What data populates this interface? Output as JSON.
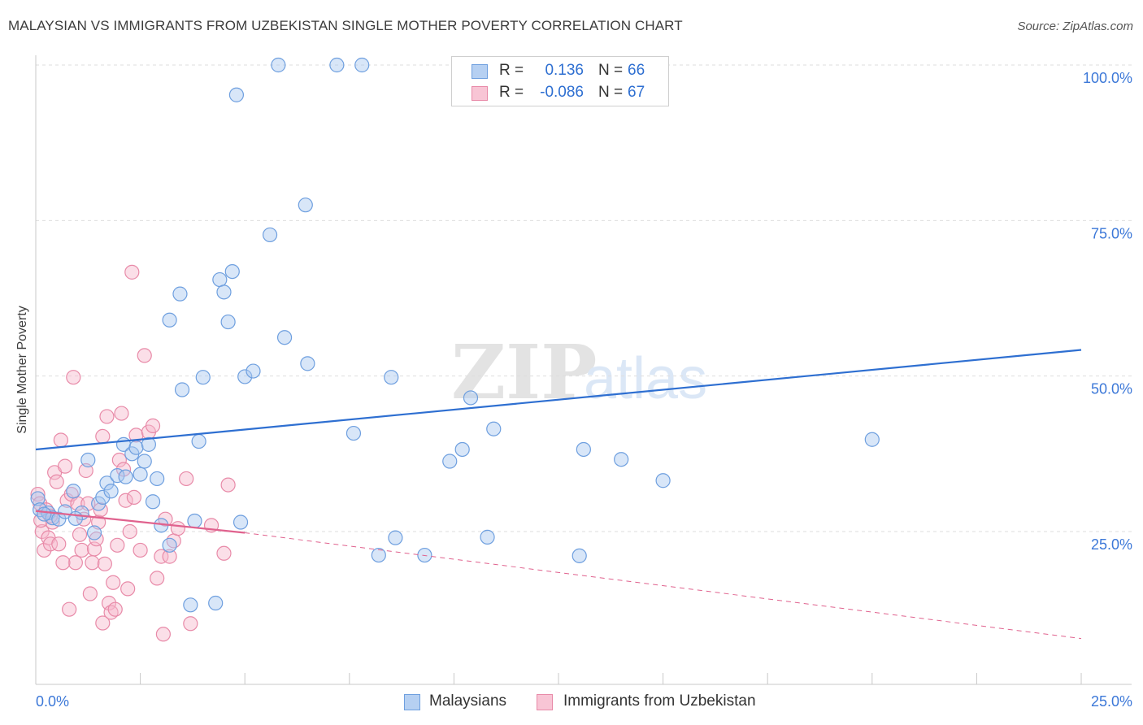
{
  "title": "MALAYSIAN VS IMMIGRANTS FROM UZBEKISTAN SINGLE MOTHER POVERTY CORRELATION CHART",
  "source": "Source: ZipAtlas.com",
  "watermark": {
    "bold": "ZIP",
    "light": "atlas"
  },
  "legend_top": {
    "rows": [
      {
        "r_label": "R =",
        "r_value": "0.136",
        "n_label": "N =",
        "n_value": "66"
      },
      {
        "r_label": "R =",
        "r_value": "-0.086",
        "n_label": "N =",
        "n_value": "67"
      }
    ]
  },
  "legend_bottom": {
    "series1": "Malaysians",
    "series2": "Immigrants from Uzbekistan"
  },
  "colors": {
    "malaysian_fill": "#a9c8f0",
    "malaysian_stroke": "#6e9fdf",
    "malaysian_line": "#2e6fd1",
    "uzbek_fill": "#f6b8cc",
    "uzbek_stroke": "#e88aa8",
    "uzbek_line": "#e0628e",
    "tick_label": "#3c78d8",
    "grid": "#dedede"
  },
  "chart_data": {
    "type": "scatter",
    "title": "MALAYSIAN VS IMMIGRANTS FROM UZBEKISTAN SINGLE MOTHER POVERTY CORRELATION CHART",
    "xlabel": "",
    "ylabel": "Single Mother Poverty",
    "xlim": [
      0,
      25
    ],
    "ylim": [
      0,
      102
    ],
    "x_tick_labels": [
      "0.0%",
      "25.0%"
    ],
    "y_ticks": [
      25,
      50,
      75,
      100
    ],
    "y_tick_labels": [
      "25.0%",
      "50.0%",
      "75.0%",
      "100.0%"
    ],
    "series": [
      {
        "name": "Malaysians",
        "points": [
          [
            0.05,
            30.3
          ],
          [
            0.1,
            28.5
          ],
          [
            0.3,
            28
          ],
          [
            0.4,
            27.2
          ],
          [
            0.55,
            27
          ],
          [
            0.7,
            28.2
          ],
          [
            0.9,
            31.5
          ],
          [
            1.1,
            28
          ],
          [
            1.25,
            36.5
          ],
          [
            1.4,
            24.8
          ],
          [
            1.5,
            29.5
          ],
          [
            1.6,
            30.5
          ],
          [
            1.7,
            32.8
          ],
          [
            1.8,
            31.5
          ],
          [
            1.95,
            34
          ],
          [
            2.1,
            39
          ],
          [
            2.15,
            33.8
          ],
          [
            2.3,
            37.5
          ],
          [
            2.4,
            38.5
          ],
          [
            2.5,
            34.2
          ],
          [
            2.6,
            36.3
          ],
          [
            2.7,
            39
          ],
          [
            2.8,
            29.8
          ],
          [
            2.9,
            33.5
          ],
          [
            3.0,
            26
          ],
          [
            3.2,
            22.8
          ],
          [
            3.2,
            59
          ],
          [
            3.45,
            63.2
          ],
          [
            3.5,
            47.8
          ],
          [
            3.7,
            13.2
          ],
          [
            3.8,
            26.7
          ],
          [
            3.9,
            39.5
          ],
          [
            4.0,
            49.8
          ],
          [
            4.3,
            13.5
          ],
          [
            4.4,
            65.5
          ],
          [
            4.5,
            63.5
          ],
          [
            4.6,
            58.7
          ],
          [
            4.7,
            66.8
          ],
          [
            4.8,
            95.2
          ],
          [
            4.9,
            26.5
          ],
          [
            5.0,
            49.9
          ],
          [
            5.2,
            50.8
          ],
          [
            5.6,
            72.7
          ],
          [
            5.8,
            100
          ],
          [
            5.95,
            56.2
          ],
          [
            6.45,
            77.5
          ],
          [
            6.5,
            52
          ],
          [
            7.2,
            100
          ],
          [
            7.8,
            100
          ],
          [
            7.6,
            40.8
          ],
          [
            8.2,
            21.2
          ],
          [
            8.5,
            49.8
          ],
          [
            8.6,
            24
          ],
          [
            9.3,
            21.2
          ],
          [
            9.9,
            36.3
          ],
          [
            10.2,
            38.2
          ],
          [
            10.4,
            46.5
          ],
          [
            10.8,
            24.1
          ],
          [
            10.95,
            41.5
          ],
          [
            13.0,
            21.1
          ],
          [
            13.1,
            38.2
          ],
          [
            14.0,
            36.6
          ],
          [
            15.0,
            33.2
          ],
          [
            20.0,
            39.8
          ],
          [
            0.2,
            27.8
          ],
          [
            0.95,
            27.1
          ]
        ]
      },
      {
        "name": "Immigrants from Uzbekistan",
        "points": [
          [
            0.05,
            31
          ],
          [
            0.1,
            29.5
          ],
          [
            0.15,
            25
          ],
          [
            0.2,
            22
          ],
          [
            0.25,
            28.5
          ],
          [
            0.3,
            24
          ],
          [
            0.35,
            23
          ],
          [
            0.4,
            26.5
          ],
          [
            0.45,
            34.5
          ],
          [
            0.5,
            33
          ],
          [
            0.55,
            23
          ],
          [
            0.6,
            39.7
          ],
          [
            0.7,
            35.5
          ],
          [
            0.75,
            30
          ],
          [
            0.8,
            12.5
          ],
          [
            0.85,
            31
          ],
          [
            0.9,
            49.8
          ],
          [
            0.95,
            20
          ],
          [
            1.0,
            29.5
          ],
          [
            1.05,
            24.5
          ],
          [
            1.1,
            22
          ],
          [
            1.15,
            27
          ],
          [
            1.2,
            34.8
          ],
          [
            1.25,
            29.5
          ],
          [
            1.3,
            15
          ],
          [
            1.35,
            20
          ],
          [
            1.4,
            22.2
          ],
          [
            1.45,
            23.8
          ],
          [
            1.5,
            26.5
          ],
          [
            1.55,
            28.5
          ],
          [
            1.6,
            40.3
          ],
          [
            1.65,
            19.8
          ],
          [
            1.7,
            43.5
          ],
          [
            1.75,
            13.5
          ],
          [
            1.8,
            12
          ],
          [
            1.85,
            16.8
          ],
          [
            1.9,
            12.5
          ],
          [
            1.95,
            22.8
          ],
          [
            2.0,
            36.5
          ],
          [
            2.05,
            44
          ],
          [
            2.1,
            35
          ],
          [
            2.15,
            30
          ],
          [
            2.2,
            15.8
          ],
          [
            2.25,
            25
          ],
          [
            2.3,
            66.7
          ],
          [
            2.4,
            40.5
          ],
          [
            2.5,
            22
          ],
          [
            2.6,
            53.3
          ],
          [
            2.7,
            41
          ],
          [
            2.8,
            42
          ],
          [
            2.9,
            17.5
          ],
          [
            3.0,
            21
          ],
          [
            3.05,
            8.5
          ],
          [
            3.1,
            27
          ],
          [
            3.2,
            21
          ],
          [
            3.3,
            23.5
          ],
          [
            3.4,
            25.5
          ],
          [
            3.6,
            33.5
          ],
          [
            3.7,
            10.2
          ],
          [
            4.2,
            26
          ],
          [
            4.5,
            21.5
          ],
          [
            4.6,
            32.5
          ],
          [
            0.12,
            26.8
          ],
          [
            0.65,
            20
          ],
          [
            1.6,
            10.3
          ],
          [
            2.35,
            30.5
          ],
          [
            0.35,
            27.5
          ]
        ]
      }
    ],
    "trendlines": [
      {
        "series": "Malaysians",
        "x": [
          0,
          25
        ],
        "y": [
          38.2,
          54.2
        ],
        "style": "solid"
      },
      {
        "series": "Immigrants from Uzbekistan",
        "x": [
          0,
          5
        ],
        "y": [
          28.3,
          24.8
        ],
        "style": "solid"
      },
      {
        "series": "Immigrants from Uzbekistan",
        "x": [
          5,
          25
        ],
        "y": [
          24.8,
          7.8
        ],
        "style": "dashed"
      }
    ]
  }
}
